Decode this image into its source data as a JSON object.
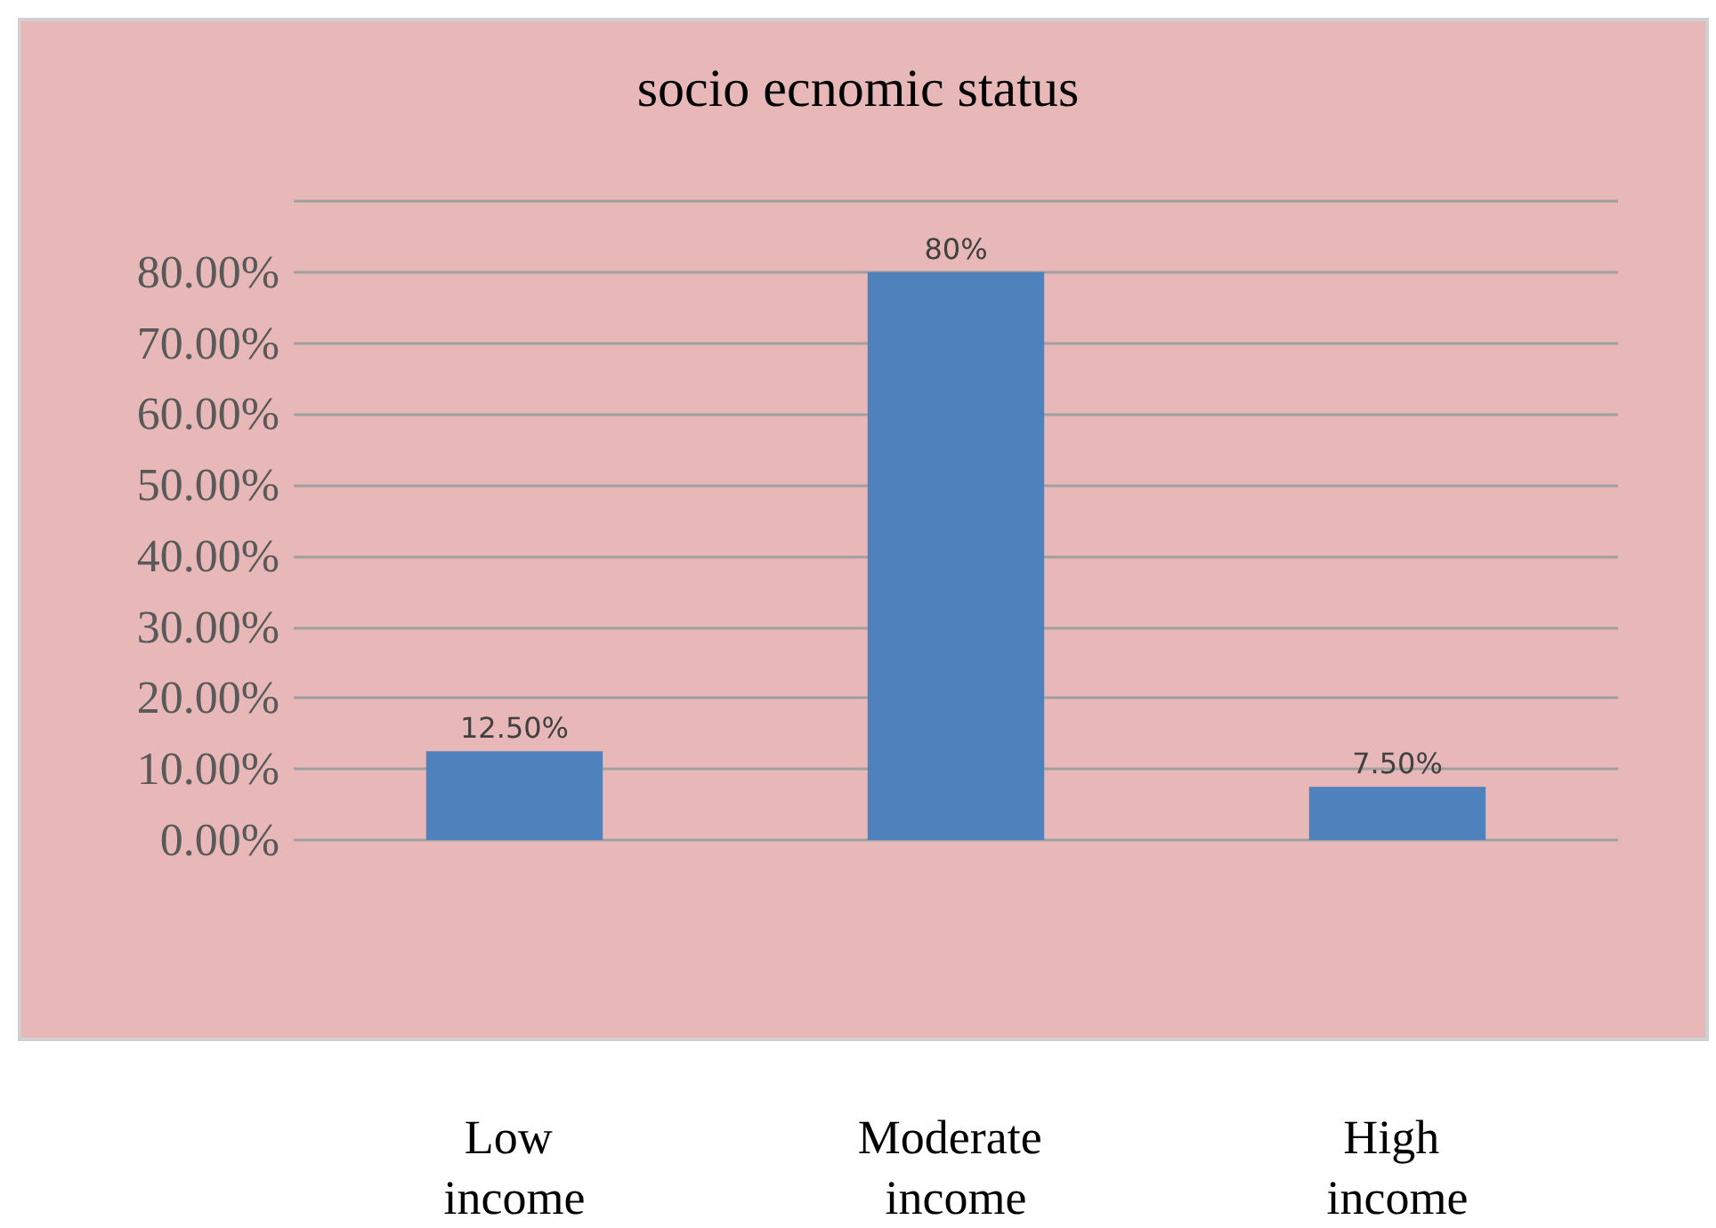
{
  "chart_data": {
    "type": "bar",
    "title": "socio ecnomic status",
    "categories": [
      "Low income",
      "Moderate income",
      "High income"
    ],
    "values": [
      12.5,
      80,
      7.5
    ],
    "color": "#4f81bd",
    "value_labels": [
      "12.50%",
      "80%",
      "7.50%"
    ],
    "ylim": [
      0,
      90
    ],
    "yticks": [
      {
        "value": 0,
        "label": "0.00%"
      },
      {
        "value": 10,
        "label": "10.00%"
      },
      {
        "value": 20,
        "label": "20.00%"
      },
      {
        "value": 30,
        "label": "30.00%"
      },
      {
        "value": 40,
        "label": "40.00%"
      },
      {
        "value": 50,
        "label": "50.00%"
      },
      {
        "value": 60,
        "label": "60.00%"
      },
      {
        "value": 70,
        "label": "70.00%"
      },
      {
        "value": 80,
        "label": "80.00%"
      },
      {
        "value": 90,
        "label": null
      }
    ],
    "grid": "y"
  }
}
